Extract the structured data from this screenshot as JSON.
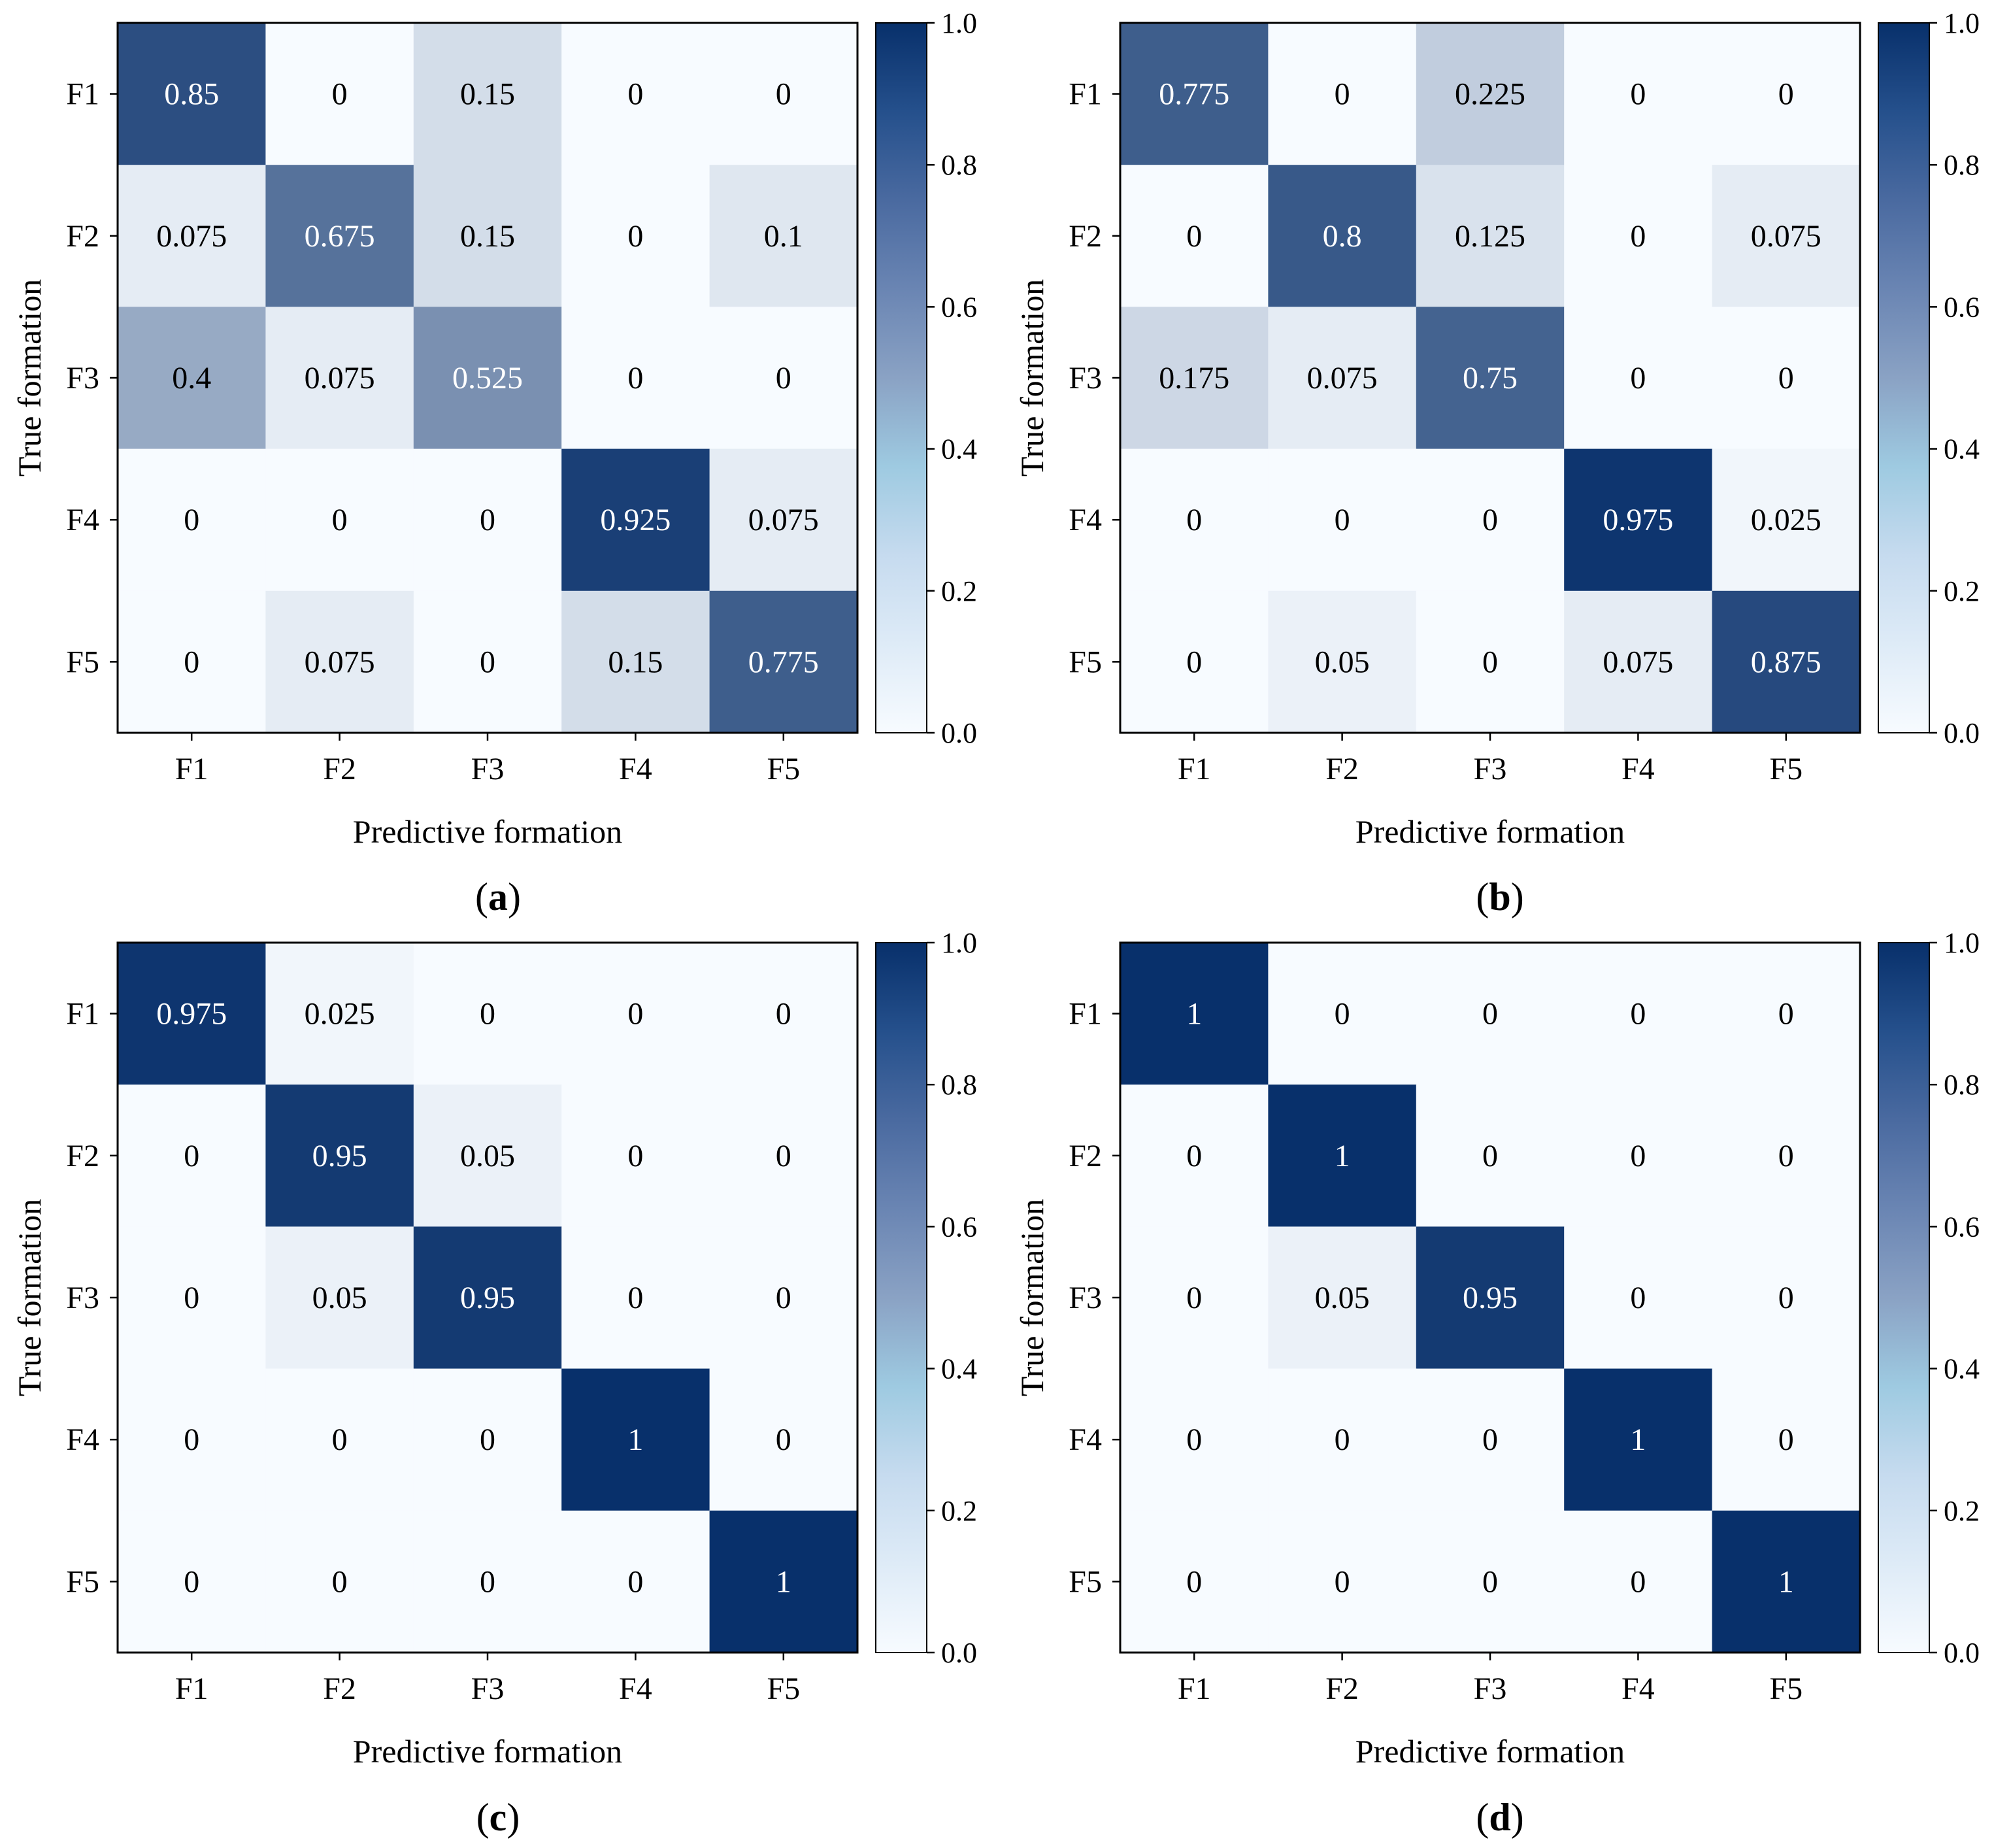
{
  "figure_captions": [
    {
      "open": "(",
      "letter": "a",
      "close": ")"
    },
    {
      "open": "(",
      "letter": "b",
      "close": ")"
    },
    {
      "open": "(",
      "letter": "c",
      "close": ")"
    },
    {
      "open": "(",
      "letter": "d",
      "close": ")"
    }
  ],
  "chart_data": [
    {
      "type": "heatmap",
      "panel": "(a)",
      "title": "",
      "xlabel": "Predictive formation",
      "ylabel": "True formation",
      "x_categories": [
        "F1",
        "F2",
        "F3",
        "F4",
        "F5"
      ],
      "y_categories": [
        "F1",
        "F2",
        "F3",
        "F4",
        "F5"
      ],
      "values": [
        [
          0.85,
          0,
          0.15,
          0,
          0
        ],
        [
          0.075,
          0.675,
          0.15,
          0,
          0.1
        ],
        [
          0.4,
          0.075,
          0.525,
          0,
          0
        ],
        [
          0,
          0,
          0,
          0.925,
          0.075
        ],
        [
          0,
          0.075,
          0,
          0.15,
          0.775
        ]
      ],
      "colorbar": {
        "range": [
          0.0,
          1.0
        ],
        "ticks": [
          "0.0",
          "0.2",
          "0.4",
          "0.6",
          "0.8",
          "1.0"
        ],
        "colormap": "Blues",
        "low_color": "#f7fbff",
        "high_color": "#08306b"
      }
    },
    {
      "type": "heatmap",
      "panel": "(b)",
      "title": "",
      "xlabel": "Predictive formation",
      "ylabel": "True formation",
      "x_categories": [
        "F1",
        "F2",
        "F3",
        "F4",
        "F5"
      ],
      "y_categories": [
        "F1",
        "F2",
        "F3",
        "F4",
        "F5"
      ],
      "values": [
        [
          0.775,
          0,
          0.225,
          0,
          0
        ],
        [
          0,
          0.8,
          0.125,
          0,
          0.075
        ],
        [
          0.175,
          0.075,
          0.75,
          0,
          0
        ],
        [
          0,
          0,
          0,
          0.975,
          0.025
        ],
        [
          0,
          0.05,
          0,
          0.075,
          0.875
        ]
      ],
      "colorbar": {
        "range": [
          0.0,
          1.0
        ],
        "ticks": [
          "0.0",
          "0.2",
          "0.4",
          "0.6",
          "0.8",
          "1.0"
        ],
        "colormap": "Blues",
        "low_color": "#f7fbff",
        "high_color": "#08306b"
      }
    },
    {
      "type": "heatmap",
      "panel": "(c)",
      "title": "",
      "xlabel": "Predictive formation",
      "ylabel": "True formation",
      "x_categories": [
        "F1",
        "F2",
        "F3",
        "F4",
        "F5"
      ],
      "y_categories": [
        "F1",
        "F2",
        "F3",
        "F4",
        "F5"
      ],
      "values": [
        [
          0.975,
          0.025,
          0,
          0,
          0
        ],
        [
          0,
          0.95,
          0.05,
          0,
          0
        ],
        [
          0,
          0.05,
          0.95,
          0,
          0
        ],
        [
          0,
          0,
          0,
          1,
          0
        ],
        [
          0,
          0,
          0,
          0,
          1
        ]
      ],
      "colorbar": {
        "range": [
          0.0,
          1.0
        ],
        "ticks": [
          "0.0",
          "0.2",
          "0.4",
          "0.6",
          "0.8",
          "1.0"
        ],
        "colormap": "Blues",
        "low_color": "#f7fbff",
        "high_color": "#08306b"
      }
    },
    {
      "type": "heatmap",
      "panel": "(d)",
      "title": "",
      "xlabel": "Predictive formation",
      "ylabel": "True formation",
      "x_categories": [
        "F1",
        "F2",
        "F3",
        "F4",
        "F5"
      ],
      "y_categories": [
        "F1",
        "F2",
        "F3",
        "F4",
        "F5"
      ],
      "values": [
        [
          1,
          0,
          0,
          0,
          0
        ],
        [
          0,
          1,
          0,
          0,
          0
        ],
        [
          0,
          0.05,
          0.95,
          0,
          0
        ],
        [
          0,
          0,
          0,
          1,
          0
        ],
        [
          0,
          0,
          0,
          0,
          1
        ]
      ],
      "colorbar": {
        "range": [
          0.0,
          1.0
        ],
        "ticks": [
          "0.0",
          "0.2",
          "0.4",
          "0.6",
          "0.8",
          "1.0"
        ],
        "colormap": "Blues",
        "low_color": "#f7fbff",
        "high_color": "#08306b"
      }
    }
  ]
}
